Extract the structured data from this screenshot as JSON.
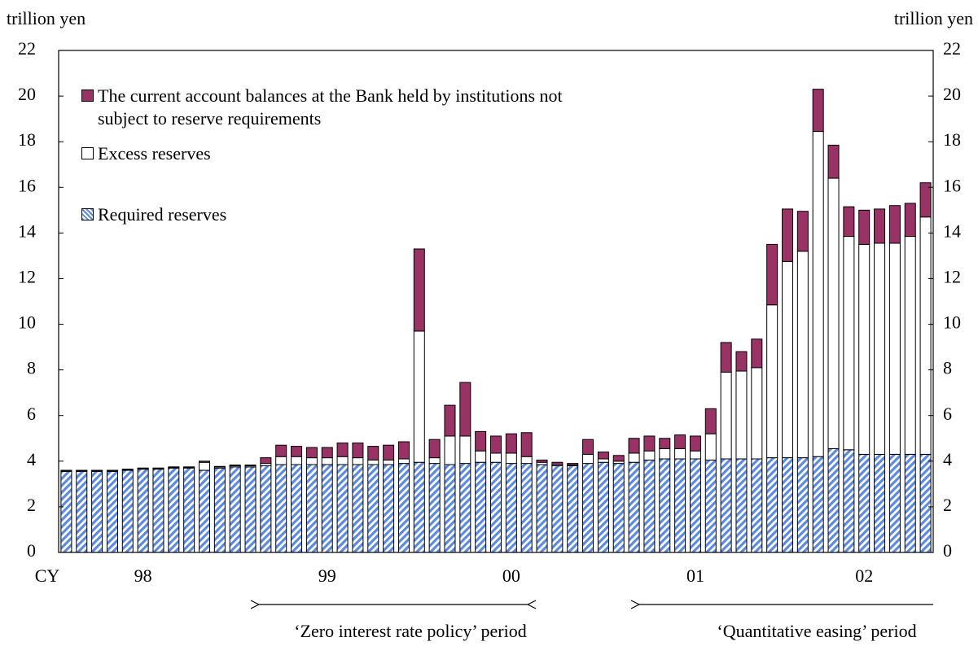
{
  "chart_data": {
    "type": "stacked-bar",
    "y_label": "trillion yen",
    "y2_label": "trillion yen",
    "x_label": "CY",
    "categories": [
      null,
      null,
      null,
      null,
      null,
      "98",
      null,
      null,
      null,
      null,
      null,
      null,
      null,
      null,
      null,
      null,
      null,
      "99",
      null,
      null,
      null,
      null,
      null,
      null,
      null,
      null,
      null,
      null,
      null,
      "00",
      null,
      null,
      null,
      null,
      null,
      null,
      null,
      null,
      null,
      null,
      null,
      "01",
      null,
      null,
      null,
      null,
      null,
      null,
      null,
      null,
      null,
      null,
      "02",
      null,
      null,
      null,
      null
    ],
    "series": [
      {
        "name": "Required reserves",
        "color": "#5b8ae0",
        "values": [
          3.55,
          3.55,
          3.55,
          3.55,
          3.6,
          3.65,
          3.65,
          3.7,
          3.7,
          3.6,
          3.7,
          3.75,
          3.75,
          3.8,
          3.85,
          3.85,
          3.85,
          3.85,
          3.85,
          3.85,
          3.85,
          3.85,
          3.9,
          3.95,
          3.9,
          3.85,
          3.9,
          3.95,
          3.95,
          3.9,
          3.9,
          3.85,
          3.8,
          3.8,
          3.9,
          3.95,
          3.9,
          3.95,
          4.05,
          4.1,
          4.1,
          4.1,
          4.05,
          4.1,
          4.1,
          4.1,
          4.15,
          4.15,
          4.15,
          4.2,
          4.55,
          4.5,
          4.3,
          4.3,
          4.3,
          4.3,
          4.3
        ]
      },
      {
        "name": "Excess reserves",
        "color": "#ffffff",
        "values": [
          0.03,
          0.03,
          0.03,
          0.03,
          0.03,
          0.03,
          0.03,
          0.03,
          0.03,
          0.35,
          0.05,
          0.05,
          0.05,
          0.1,
          0.35,
          0.35,
          0.3,
          0.3,
          0.35,
          0.3,
          0.2,
          0.2,
          0.2,
          5.75,
          0.25,
          1.25,
          1.2,
          0.5,
          0.4,
          0.45,
          0.3,
          0.1,
          0.05,
          0.03,
          0.4,
          0.15,
          0.1,
          0.4,
          0.4,
          0.45,
          0.45,
          0.35,
          1.15,
          3.8,
          3.85,
          4.0,
          6.7,
          8.6,
          9.05,
          14.25,
          11.85,
          9.35,
          9.2,
          9.25,
          9.25,
          9.55,
          10.4
        ]
      },
      {
        "name": "The current account balances at the Bank held by institutions not subject to reserve requirements",
        "color": "#993366",
        "values": [
          0.02,
          0.02,
          0.02,
          0.02,
          0.02,
          0.02,
          0.02,
          0.02,
          0.02,
          0.05,
          0.02,
          0.03,
          0.03,
          0.25,
          0.5,
          0.45,
          0.45,
          0.45,
          0.6,
          0.65,
          0.6,
          0.65,
          0.75,
          3.6,
          0.8,
          1.35,
          2.35,
          0.85,
          0.75,
          0.85,
          1.05,
          0.1,
          0.1,
          0.07,
          0.65,
          0.3,
          0.25,
          0.65,
          0.65,
          0.45,
          0.6,
          0.65,
          1.1,
          1.3,
          0.85,
          1.25,
          2.65,
          2.3,
          1.75,
          1.85,
          1.45,
          1.3,
          1.5,
          1.5,
          1.65,
          1.45,
          1.5
        ]
      }
    ],
    "ylim": [
      0,
      22
    ],
    "yticks": [
      0,
      2,
      4,
      6,
      8,
      10,
      12,
      14,
      16,
      18,
      20,
      22
    ],
    "y2lim": [
      0,
      22
    ],
    "y2ticks": [
      0,
      2,
      4,
      6,
      8,
      10,
      12,
      14,
      16,
      18,
      20,
      22
    ],
    "annotations": [
      "‘Zero interest rate policy’ period",
      "‘Quantitative easing’ period"
    ]
  }
}
